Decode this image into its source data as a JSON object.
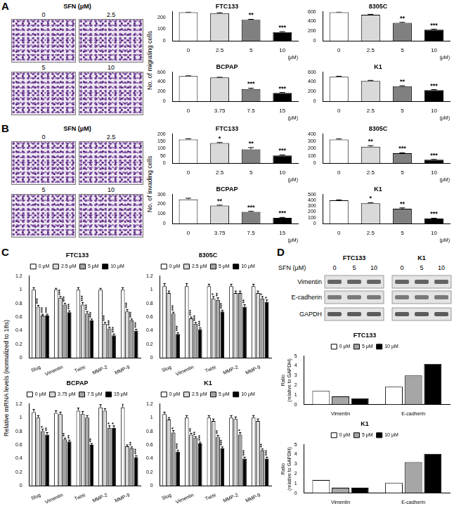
{
  "panels": [
    {
      "letter": "A",
      "images": {
        "title": "SFN (μM)",
        "labels": [
          "0",
          "2.5",
          "5",
          "10"
        ]
      },
      "ylabel": "No. of migrating cells"
    },
    {
      "letter": "B",
      "images": {
        "title": "SFN (μM)",
        "labels": [
          "0",
          "2.5",
          "5",
          "10"
        ]
      },
      "ylabel": "No. of invading cells"
    },
    {
      "letter": "C",
      "ylabel": "Relative mRNA levels (normalized to 18s)"
    },
    {
      "letter": "D",
      "blot": {
        "title": "SFN (μM)",
        "groups": [
          {
            "name": "FTC133",
            "lanes": [
              "0",
              "5",
              "10"
            ]
          },
          {
            "name": "K1",
            "lanes": [
              "0",
              "5",
              "10"
            ]
          }
        ],
        "rows": [
          "Vimentin",
          "E-cadherin",
          "GAPDH"
        ]
      }
    }
  ],
  "chart_data": [
    {
      "type": "bar",
      "title": "FTC133",
      "categories": [
        "0",
        "2.5",
        "5",
        "10"
      ],
      "values": [
        245,
        238,
        180,
        75
      ],
      "errors": [
        3,
        4,
        5,
        4
      ],
      "annotations": [
        null,
        null,
        "**",
        "***"
      ],
      "colors": [
        "#ffffff",
        "#d9d9d9",
        "#808080",
        "#000000"
      ],
      "xlabel": "(μM)",
      "ylim": [
        0,
        250
      ],
      "yticks": [
        0,
        100,
        200
      ],
      "grid": false
    },
    {
      "type": "bar",
      "title": "8305C",
      "categories": [
        "0",
        "2.5",
        "5",
        "10"
      ],
      "values": [
        590,
        540,
        370,
        230
      ],
      "errors": [
        8,
        8,
        12,
        10
      ],
      "annotations": [
        null,
        null,
        "**",
        "***"
      ],
      "colors": [
        "#ffffff",
        "#d9d9d9",
        "#808080",
        "#000000"
      ],
      "xlabel": "(μM)",
      "ylim": [
        0,
        600
      ],
      "yticks": [
        0,
        200,
        400,
        600
      ],
      "grid": false
    },
    {
      "type": "bar",
      "title": "BCPAP",
      "categories": [
        "0",
        "3.75",
        "7.5",
        "15"
      ],
      "values": [
        520,
        490,
        250,
        170
      ],
      "errors": [
        6,
        6,
        20,
        10
      ],
      "annotations": [
        null,
        null,
        "***",
        "***"
      ],
      "colors": [
        "#ffffff",
        "#d9d9d9",
        "#808080",
        "#000000"
      ],
      "xlabel": "(μM)",
      "ylim": [
        0,
        600
      ],
      "yticks": [
        0,
        200,
        400,
        600
      ],
      "grid": false
    },
    {
      "type": "bar",
      "title": "K1",
      "categories": [
        "0",
        "2.5",
        "5",
        "10"
      ],
      "values": [
        505,
        420,
        310,
        230
      ],
      "errors": [
        12,
        12,
        10,
        10
      ],
      "annotations": [
        null,
        null,
        "**",
        "***"
      ],
      "colors": [
        "#ffffff",
        "#d9d9d9",
        "#808080",
        "#000000"
      ],
      "xlabel": "(μM)",
      "ylim": [
        0,
        600
      ],
      "yticks": [
        0,
        200,
        400,
        600
      ],
      "grid": false
    },
    {
      "type": "bar",
      "title": "FTC133",
      "categories": [
        "0",
        "2.5",
        "5",
        "10"
      ],
      "values": [
        163,
        138,
        95,
        52
      ],
      "errors": [
        5,
        4,
        12,
        4
      ],
      "annotations": [
        null,
        "*",
        "**",
        "***"
      ],
      "colors": [
        "#ffffff",
        "#d9d9d9",
        "#808080",
        "#000000"
      ],
      "xlabel": "(μM)",
      "ylim": [
        0,
        200
      ],
      "yticks": [
        0,
        50,
        100,
        150,
        200
      ],
      "grid": false
    },
    {
      "type": "bar",
      "title": "8305C",
      "categories": [
        "0",
        "2.5",
        "5",
        "10"
      ],
      "values": [
        325,
        225,
        135,
        45
      ],
      "errors": [
        8,
        15,
        6,
        5
      ],
      "annotations": [
        null,
        "**",
        "***",
        "***"
      ],
      "colors": [
        "#ffffff",
        "#d9d9d9",
        "#808080",
        "#000000"
      ],
      "xlabel": "(μM)",
      "ylim": [
        0,
        400
      ],
      "yticks": [
        0,
        100,
        200,
        300,
        400
      ],
      "grid": false
    },
    {
      "type": "bar",
      "title": "BCPAP",
      "categories": [
        "0",
        "3.75",
        "7.5",
        "15"
      ],
      "values": [
        250,
        185,
        120,
        58
      ],
      "errors": [
        12,
        5,
        6,
        5
      ],
      "annotations": [
        null,
        "**",
        "***",
        "***"
      ],
      "colors": [
        "#ffffff",
        "#d9d9d9",
        "#808080",
        "#000000"
      ],
      "xlabel": "(μM)",
      "ylim": [
        0,
        300
      ],
      "yticks": [
        0,
        100,
        200,
        300
      ],
      "grid": false
    },
    {
      "type": "bar",
      "title": "K1",
      "categories": [
        "0",
        "2.5",
        "5",
        "10"
      ],
      "values": [
        400,
        350,
        255,
        85
      ],
      "errors": [
        8,
        10,
        15,
        6
      ],
      "annotations": [
        null,
        "*",
        "**",
        "***"
      ],
      "colors": [
        "#ffffff",
        "#d9d9d9",
        "#808080",
        "#000000"
      ],
      "xlabel": "(μM)",
      "ylim": [
        0,
        500
      ],
      "yticks": [
        0,
        100,
        200,
        300,
        400,
        500
      ],
      "grid": false
    },
    {
      "type": "bar",
      "title": "FTC133",
      "categories": [
        "Slug",
        "Vimentin",
        "Twist",
        "MMP-2",
        "MMP-9"
      ],
      "series": [
        {
          "name": "0 μM",
          "color": "#ffffff",
          "values": [
            1.0,
            1.0,
            1.0,
            1.0,
            1.0
          ],
          "errors": [
            0.03,
            0.02,
            0.03,
            0.02,
            0.03
          ]
        },
        {
          "name": "2.5 μM",
          "color": "#d9d9d9",
          "values": [
            0.75,
            0.88,
            0.78,
            0.5,
            0.68
          ],
          "errors": [
            0.02,
            0.02,
            0.03,
            0.02,
            0.03
          ],
          "annotations": [
            "***",
            "***",
            "***",
            "***",
            "***"
          ]
        },
        {
          "name": "5 μM",
          "color": "#a6a6a6",
          "values": [
            0.62,
            0.78,
            0.65,
            0.43,
            0.55
          ],
          "errors": [
            0.02,
            0.02,
            0.03,
            0.02,
            0.02
          ],
          "annotations": [
            "***",
            "***",
            "***",
            "***",
            "***"
          ]
        },
        {
          "name": "10 μM",
          "color": "#000000",
          "values": [
            0.62,
            0.67,
            0.55,
            0.33,
            0.4
          ],
          "errors": [
            0.02,
            0.02,
            0.02,
            0.02,
            0.02
          ],
          "annotations": [
            "***",
            "***",
            "***",
            "***",
            "***"
          ]
        }
      ],
      "ylim": [
        0,
        1.2
      ],
      "yticks": [
        0,
        0.2,
        0.4,
        0.6,
        0.8,
        1,
        1.2
      ],
      "grid": false,
      "legend": "top"
    },
    {
      "type": "bar",
      "title": "8305C",
      "categories": [
        "Slug",
        "Vimentin",
        "Twist",
        "MMP-2",
        "MMP-9"
      ],
      "series": [
        {
          "name": "0 μM",
          "color": "#ffffff",
          "values": [
            1.05,
            1.05,
            1.05,
            1.05,
            1.05
          ],
          "errors": [
            0.04,
            0.04,
            0.03,
            0.03,
            0.03
          ]
        },
        {
          "name": "2.5 μM",
          "color": "#d9d9d9",
          "values": [
            0.95,
            0.58,
            0.87,
            0.95,
            0.95
          ],
          "errors": [
            0.03,
            0.02,
            0.03,
            0.03,
            0.03
          ],
          "annotations": [
            null,
            "***",
            "*",
            null,
            null
          ]
        },
        {
          "name": "5 μM",
          "color": "#a6a6a6",
          "values": [
            0.65,
            0.5,
            0.85,
            0.95,
            0.87
          ],
          "errors": [
            0.02,
            0.02,
            0.03,
            0.03,
            0.03
          ],
          "annotations": [
            "***",
            "***",
            "**",
            null,
            "*"
          ]
        },
        {
          "name": "10 μM",
          "color": "#000000",
          "values": [
            0.35,
            0.42,
            0.68,
            0.75,
            0.82
          ],
          "errors": [
            0.02,
            0.02,
            0.02,
            0.03,
            0.03
          ],
          "annotations": [
            "***",
            "***",
            "***",
            "**",
            "*"
          ]
        }
      ],
      "ylim": [
        0,
        1.2
      ],
      "yticks": [
        0,
        0.2,
        0.4,
        0.6,
        0.8,
        1,
        1.2
      ],
      "grid": false,
      "legend": "top"
    },
    {
      "type": "bar",
      "title": "BCPAP",
      "categories": [
        "Slug",
        "Vimentin",
        "Twist",
        "MMP-2",
        "MMP-9"
      ],
      "series": [
        {
          "name": "0 μM",
          "color": "#ffffff",
          "values": [
            1.08,
            1.07,
            1.1,
            1.15,
            1.15
          ],
          "errors": [
            0.04,
            0.03,
            0.04,
            0.04,
            0.05
          ]
        },
        {
          "name": "3.75 μM",
          "color": "#d9d9d9",
          "values": [
            1.0,
            1.05,
            1.05,
            1.1,
            0.58
          ],
          "errors": [
            0.03,
            0.03,
            0.04,
            0.03,
            0.02
          ]
        },
        {
          "name": "7.5 μM",
          "color": "#a6a6a6",
          "values": [
            0.8,
            0.68,
            1.0,
            0.85,
            0.55
          ],
          "errors": [
            0.03,
            0.02,
            0.03,
            0.03,
            0.02
          ],
          "annotations": [
            "*",
            "**",
            null,
            "*",
            "**"
          ]
        },
        {
          "name": "15 μM",
          "color": "#000000",
          "values": [
            0.75,
            0.65,
            0.6,
            0.85,
            0.42
          ],
          "errors": [
            0.03,
            0.02,
            0.02,
            0.03,
            0.02
          ],
          "annotations": [
            "**",
            "**",
            "**",
            "*",
            "***"
          ]
        }
      ],
      "ylim": [
        0,
        1.2
      ],
      "yticks": [
        0,
        0.2,
        0.4,
        0.6,
        0.8,
        1,
        1.2
      ],
      "grid": false,
      "legend": "top"
    },
    {
      "type": "bar",
      "title": "K1",
      "categories": [
        "Slug",
        "Vimentin",
        "Twist",
        "MMP-2",
        "MMP-9"
      ],
      "series": [
        {
          "name": "0 μM",
          "color": "#ffffff",
          "values": [
            1.05,
            1.0,
            1.0,
            1.0,
            1.0
          ],
          "errors": [
            0.03,
            0.03,
            0.03,
            0.03,
            0.03
          ]
        },
        {
          "name": "2.5 μM",
          "color": "#d9d9d9",
          "values": [
            0.97,
            0.75,
            0.95,
            0.98,
            0.95
          ],
          "errors": [
            0.03,
            0.02,
            0.03,
            0.03,
            0.03
          ],
          "annotations": [
            null,
            "**",
            null,
            null,
            null
          ]
        },
        {
          "name": "5 μM",
          "color": "#a6a6a6",
          "values": [
            0.78,
            0.7,
            0.72,
            0.75,
            0.52
          ],
          "errors": [
            0.03,
            0.02,
            0.02,
            0.03,
            0.02
          ],
          "annotations": [
            "*",
            "**",
            "**",
            "*",
            "**"
          ]
        },
        {
          "name": "10 μM",
          "color": "#000000",
          "values": [
            0.5,
            0.62,
            0.55,
            0.4,
            0.4
          ],
          "errors": [
            0.02,
            0.02,
            0.02,
            0.02,
            0.02
          ],
          "annotations": [
            "***",
            "***",
            "***",
            "***",
            "***"
          ]
        }
      ],
      "ylim": [
        0,
        1.2
      ],
      "yticks": [
        0,
        0.2,
        0.4,
        0.6,
        0.8,
        1,
        1.2
      ],
      "grid": false,
      "legend": "top"
    },
    {
      "type": "bar",
      "title": "FTC133",
      "categories": [
        "Vimentin",
        "E-cadherin"
      ],
      "series": [
        {
          "name": "0 μM",
          "color": "#ffffff",
          "values": [
            1.4,
            1.85
          ]
        },
        {
          "name": "5 μM",
          "color": "#a6a6a6",
          "values": [
            0.85,
            3.0
          ]
        },
        {
          "name": "10 μM",
          "color": "#000000",
          "values": [
            0.65,
            4.2
          ]
        }
      ],
      "ylabel": "Ratio (relative to GAPDH)",
      "ylim": [
        0,
        5
      ],
      "yticks": [
        0,
        1,
        2,
        3,
        4,
        5
      ],
      "grid": false,
      "legend": "top"
    },
    {
      "type": "bar",
      "title": "K1",
      "categories": [
        "Vimentin",
        "E-cadherin"
      ],
      "series": [
        {
          "name": "0 μM",
          "color": "#ffffff",
          "values": [
            1.35,
            1.05
          ]
        },
        {
          "name": "5 μM",
          "color": "#a6a6a6",
          "values": [
            0.55,
            3.2
          ]
        },
        {
          "name": "10 μM",
          "color": "#000000",
          "values": [
            0.55,
            4.05
          ]
        }
      ],
      "ylabel": "Ratio (relative to GAPDH)",
      "ylim": [
        0,
        5
      ],
      "yticks": [
        0,
        1,
        2,
        3,
        4,
        5
      ],
      "grid": false,
      "legend": "top"
    }
  ]
}
